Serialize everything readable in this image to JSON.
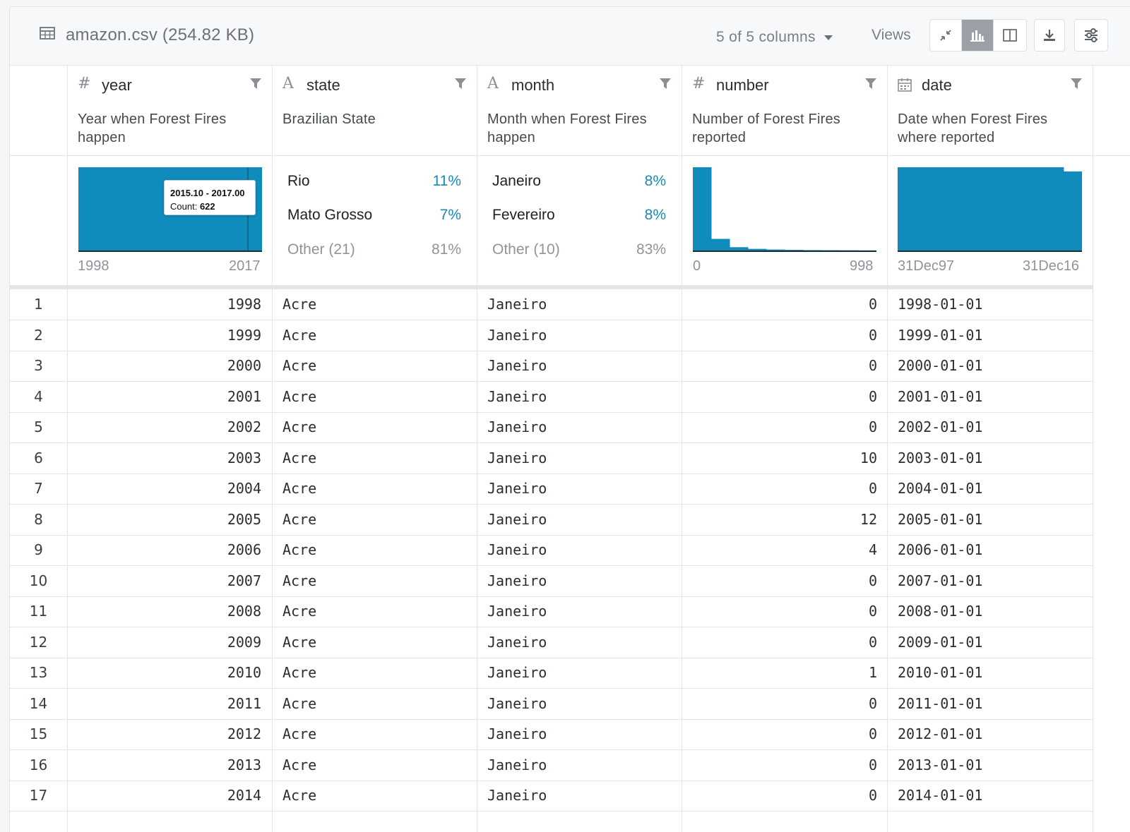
{
  "file": {
    "title": "amazon.csv (254.82 KB)",
    "icon": "table-icon"
  },
  "toolbar": {
    "columns_label": "5 of 5 columns",
    "views_label": "Views",
    "view_buttons": [
      "collapse-icon",
      "histogram-icon",
      "split-view-icon"
    ],
    "active_view": "histogram-icon",
    "download_icon": "download-icon",
    "settings_icon": "sliders-icon"
  },
  "columns": [
    {
      "type_icon": "#",
      "name": "year",
      "description": "Year when Forest Fires happen"
    },
    {
      "type_icon": "A",
      "name": "state",
      "description": "Brazilian State"
    },
    {
      "type_icon": "A",
      "name": "month",
      "description": "Month when Forest Fires happen"
    },
    {
      "type_icon": "#",
      "name": "number",
      "description": "Number of Forest Fires reported"
    },
    {
      "type_icon": "calendar-icon",
      "name": "date",
      "description": "Date when Forest Fires where reported"
    }
  ],
  "summaries": {
    "year": {
      "min_label": "1998",
      "max_label": "2017",
      "tooltip_range": "2015.10 - 2017.00",
      "tooltip_count_label": "Count:",
      "tooltip_count": "622"
    },
    "state": [
      {
        "name": "Rio",
        "pct": "11%"
      },
      {
        "name": "Mato Grosso",
        "pct": "7%"
      },
      {
        "name": "Other (21)",
        "pct": "81%"
      }
    ],
    "month": [
      {
        "name": "Janeiro",
        "pct": "8%"
      },
      {
        "name": "Fevereiro",
        "pct": "8%"
      },
      {
        "name": "Other (10)",
        "pct": "83%"
      }
    ],
    "number": {
      "min_label": "0",
      "max_label": "998"
    },
    "date": {
      "min_label": "31Dec97",
      "max_label": "31Dec16"
    }
  },
  "chart_data": [
    {
      "type": "bar",
      "series": [
        {
          "values": [
            1,
            1,
            1,
            1,
            1,
            1,
            1,
            1,
            1,
            1
          ]
        }
      ],
      "ylim": [
        0,
        1
      ]
    },
    {
      "type": "bar",
      "series": [
        {
          "values": [
            100,
            14,
            4,
            2,
            1.2,
            0.8,
            0.5,
            0.4,
            0.3,
            0.2
          ]
        }
      ],
      "ylim": [
        0,
        100
      ]
    },
    {
      "type": "bar",
      "series": [
        {
          "values": [
            100,
            100,
            100,
            100,
            100,
            100,
            100,
            100,
            100,
            95
          ]
        }
      ],
      "ylim": [
        0,
        100
      ]
    }
  ],
  "rows": [
    {
      "n": "1",
      "year": "1998",
      "state": "Acre",
      "month": "Janeiro",
      "number": "0",
      "date": "1998-01-01"
    },
    {
      "n": "2",
      "year": "1999",
      "state": "Acre",
      "month": "Janeiro",
      "number": "0",
      "date": "1999-01-01"
    },
    {
      "n": "3",
      "year": "2000",
      "state": "Acre",
      "month": "Janeiro",
      "number": "0",
      "date": "2000-01-01"
    },
    {
      "n": "4",
      "year": "2001",
      "state": "Acre",
      "month": "Janeiro",
      "number": "0",
      "date": "2001-01-01"
    },
    {
      "n": "5",
      "year": "2002",
      "state": "Acre",
      "month": "Janeiro",
      "number": "0",
      "date": "2002-01-01"
    },
    {
      "n": "6",
      "year": "2003",
      "state": "Acre",
      "month": "Janeiro",
      "number": "10",
      "date": "2003-01-01"
    },
    {
      "n": "7",
      "year": "2004",
      "state": "Acre",
      "month": "Janeiro",
      "number": "0",
      "date": "2004-01-01"
    },
    {
      "n": "8",
      "year": "2005",
      "state": "Acre",
      "month": "Janeiro",
      "number": "12",
      "date": "2005-01-01"
    },
    {
      "n": "9",
      "year": "2006",
      "state": "Acre",
      "month": "Janeiro",
      "number": "4",
      "date": "2006-01-01"
    },
    {
      "n": "10",
      "year": "2007",
      "state": "Acre",
      "month": "Janeiro",
      "number": "0",
      "date": "2007-01-01"
    },
    {
      "n": "11",
      "year": "2008",
      "state": "Acre",
      "month": "Janeiro",
      "number": "0",
      "date": "2008-01-01"
    },
    {
      "n": "12",
      "year": "2009",
      "state": "Acre",
      "month": "Janeiro",
      "number": "0",
      "date": "2009-01-01"
    },
    {
      "n": "13",
      "year": "2010",
      "state": "Acre",
      "month": "Janeiro",
      "number": "1",
      "date": "2010-01-01"
    },
    {
      "n": "14",
      "year": "2011",
      "state": "Acre",
      "month": "Janeiro",
      "number": "0",
      "date": "2011-01-01"
    },
    {
      "n": "15",
      "year": "2012",
      "state": "Acre",
      "month": "Janeiro",
      "number": "0",
      "date": "2012-01-01"
    },
    {
      "n": "16",
      "year": "2013",
      "state": "Acre",
      "month": "Janeiro",
      "number": "0",
      "date": "2013-01-01"
    },
    {
      "n": "17",
      "year": "2014",
      "state": "Acre",
      "month": "Janeiro",
      "number": "0",
      "date": "2014-01-01"
    }
  ]
}
